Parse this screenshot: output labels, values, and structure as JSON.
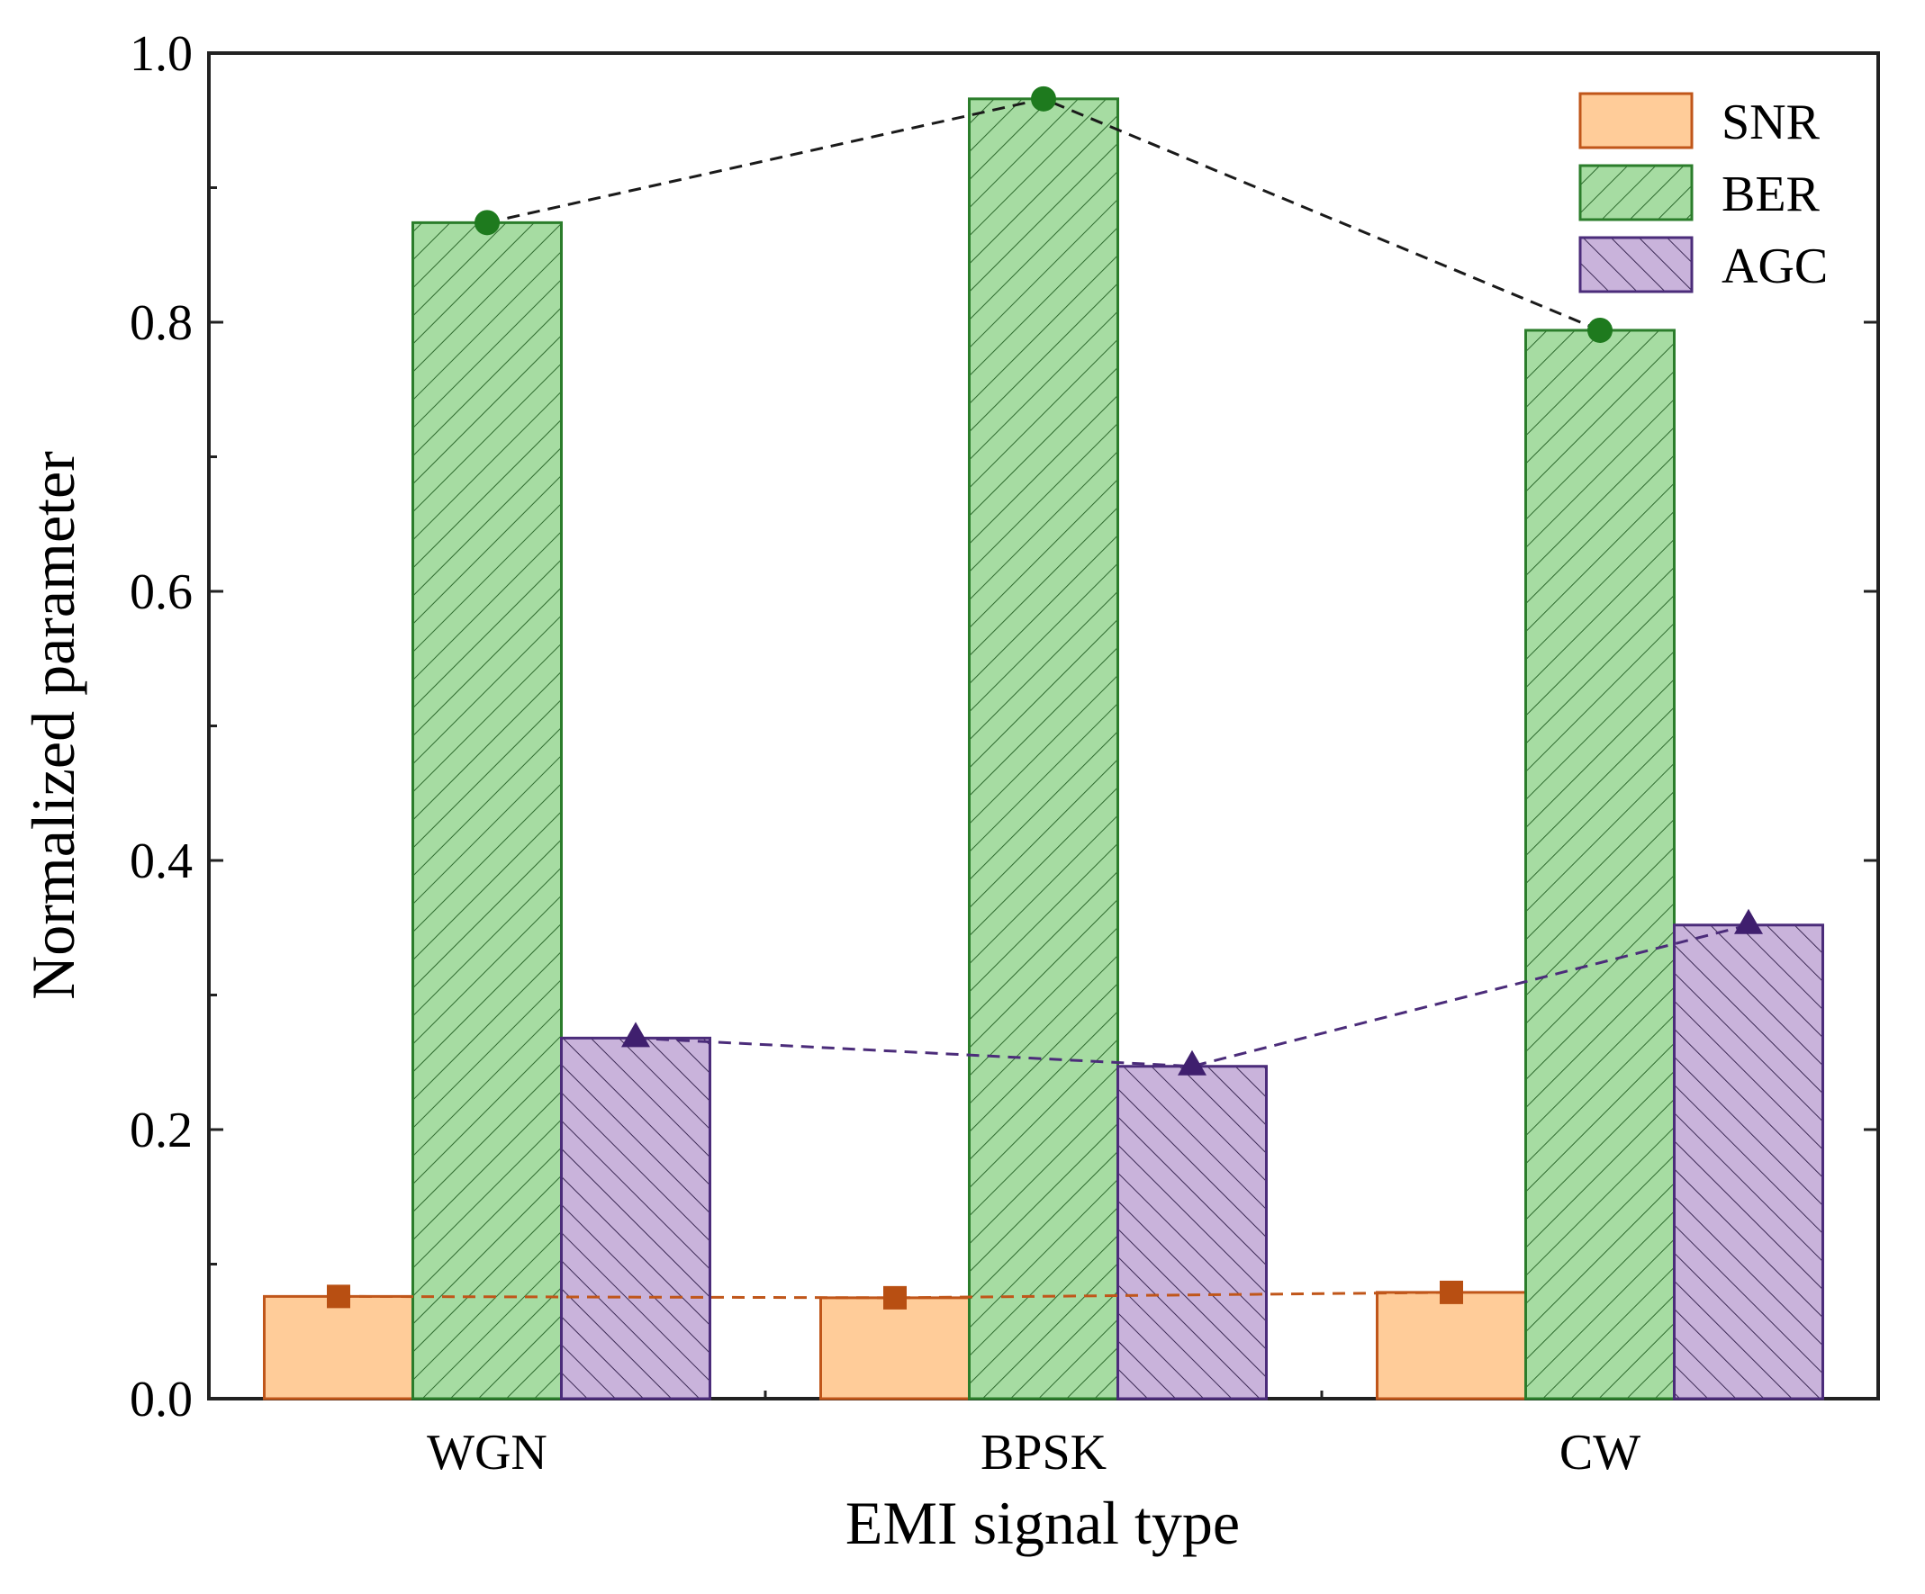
{
  "chart_data": {
    "type": "bar",
    "title": "",
    "xlabel": "EMI signal type",
    "ylabel": "Normalized parameter",
    "categories": [
      "WGN",
      "BPSK",
      "CW"
    ],
    "ylim": [
      0.0,
      1.0
    ],
    "yticks": [
      "0.0",
      "0.2",
      "0.4",
      "0.6",
      "0.8",
      "1.0"
    ],
    "legend_position": "top-right",
    "series": [
      {
        "name": "SNR",
        "values": [
          0.076,
          0.075,
          0.079
        ],
        "fill": "#ffcc99",
        "stroke": "#c0561a",
        "pattern": "none",
        "marker": "square"
      },
      {
        "name": "BER",
        "values": [
          0.874,
          0.966,
          0.794
        ],
        "fill": "#a6dca2",
        "stroke": "#2b7d2b",
        "pattern": "forward-hatch",
        "marker": "circle"
      },
      {
        "name": "AGC",
        "values": [
          0.268,
          0.247,
          0.352
        ],
        "fill": "#c9b3db",
        "stroke": "#4b2c7a",
        "pattern": "back-hatch",
        "marker": "triangle"
      }
    ]
  }
}
